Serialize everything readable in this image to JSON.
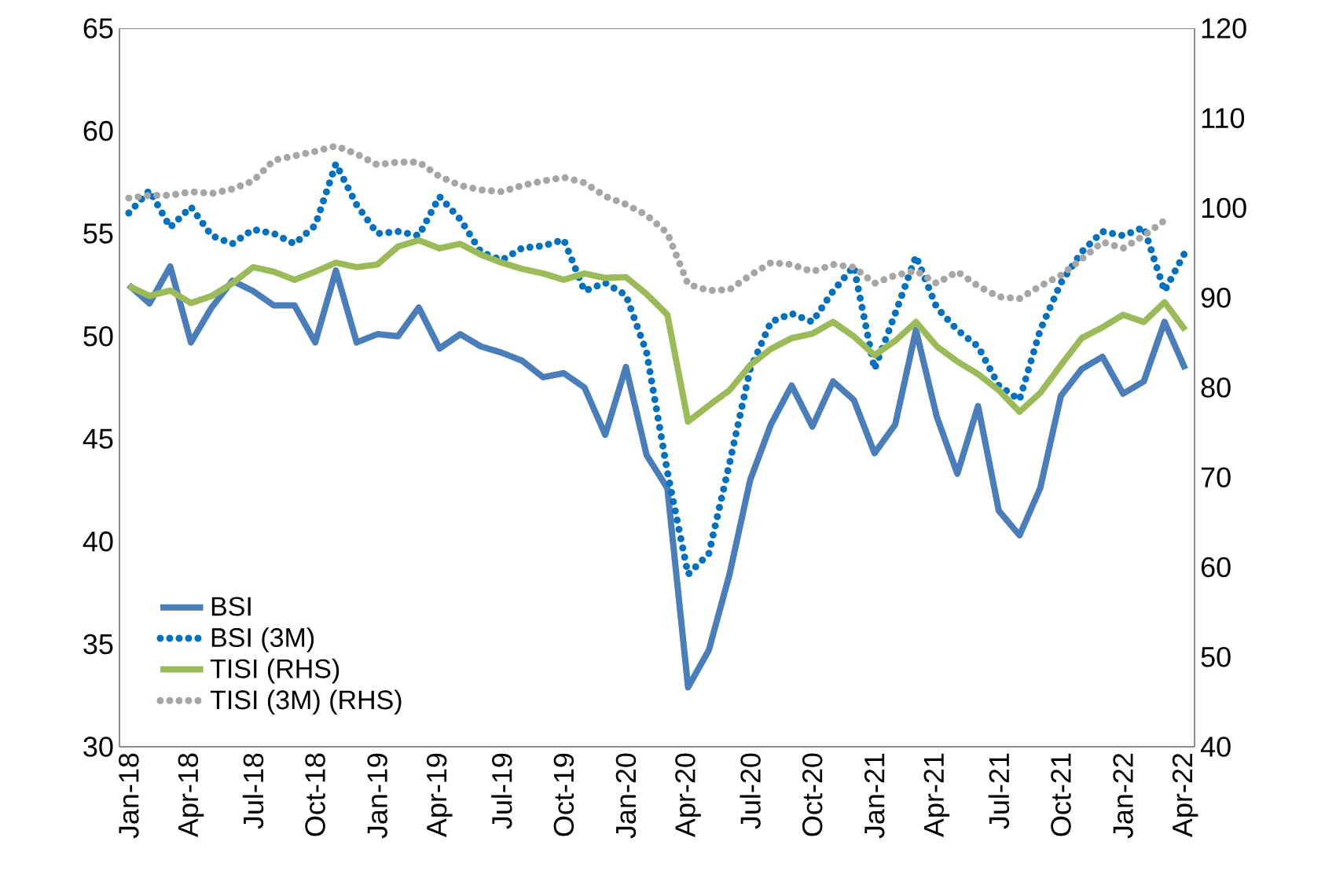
{
  "chart_data": {
    "type": "line",
    "categories": [
      "Jan-18",
      null,
      null,
      "Apr-18",
      null,
      null,
      "Jul-18",
      null,
      null,
      "Oct-18",
      null,
      null,
      "Jan-19",
      null,
      null,
      "Apr-19",
      null,
      null,
      "Jul-19",
      null,
      null,
      "Oct-19",
      null,
      null,
      "Jan-20",
      null,
      null,
      "Apr-20",
      null,
      null,
      "Jul-20",
      null,
      null,
      "Oct-20",
      null,
      null,
      "Jan-21",
      null,
      null,
      "Apr-21",
      null,
      null,
      "Jul-21",
      null,
      null,
      "Oct-21",
      null,
      null,
      "Jan-22",
      null,
      null,
      "Apr-22"
    ],
    "series": [
      {
        "name": "BSI",
        "color": "#4a7ebb",
        "line_style": "solid",
        "values": [
          52.5,
          51.6,
          53.4,
          49.7,
          51.4,
          52.7,
          52.2,
          51.5,
          51.5,
          49.7,
          53.2,
          49.7,
          50.1,
          50.0,
          51.4,
          49.4,
          50.1,
          49.5,
          49.2,
          48.8,
          48.0,
          48.2,
          47.5,
          45.2,
          48.5,
          44.2,
          42.6,
          32.9,
          34.7,
          38.4,
          43.0,
          45.7,
          47.6,
          45.6,
          47.8,
          46.9,
          44.3,
          45.7,
          50.3,
          46.1,
          43.3,
          46.6,
          41.5,
          40.3,
          42.6,
          47.1,
          48.4,
          49.0,
          47.2,
          47.8,
          50.7,
          48.4
        ]
      },
      {
        "name": "BSI (3M)",
        "color": "#0070c0",
        "line_style": "dotted",
        "values": [
          56.0,
          57.1,
          55.3,
          56.3,
          54.9,
          54.5,
          55.2,
          55.0,
          54.5,
          55.4,
          58.4,
          56.4,
          55.0,
          55.1,
          54.9,
          56.8,
          55.7,
          54.1,
          53.7,
          54.3,
          54.4,
          54.7,
          52.2,
          52.6,
          52.0,
          49.2,
          43.4,
          38.4,
          39.4,
          43.8,
          48.4,
          50.7,
          51.1,
          50.7,
          52.2,
          53.4,
          48.4,
          51.1,
          53.9,
          51.4,
          50.3,
          49.5,
          47.6,
          46.9,
          50.3,
          52.6,
          54.1,
          55.1,
          54.9,
          55.3,
          52.2,
          54.1
        ]
      },
      {
        "name": "TISI (RHS)",
        "color": "#9bbb59",
        "line_style": "solid",
        "axis": "y2",
        "values": [
          91.3,
          90.2,
          90.8,
          89.4,
          90.2,
          91.6,
          93.4,
          92.9,
          92.0,
          92.9,
          93.9,
          93.4,
          93.7,
          95.7,
          96.4,
          95.5,
          96.0,
          94.8,
          93.9,
          93.2,
          92.7,
          92.0,
          92.7,
          92.2,
          92.3,
          90.4,
          88.1,
          76.2,
          78.0,
          79.7,
          82.5,
          84.3,
          85.5,
          86.0,
          87.3,
          85.7,
          83.6,
          85.2,
          87.3,
          84.6,
          82.9,
          81.5,
          79.7,
          77.3,
          79.4,
          82.5,
          85.5,
          86.7,
          88.1,
          87.3,
          89.5,
          86.4
        ]
      },
      {
        "name": "TISI (3M) (RHS)",
        "color": "#a6a6a6",
        "line_style": "dotted",
        "axis": "y2",
        "values": [
          101.1,
          101.4,
          101.4,
          101.8,
          101.6,
          102.1,
          103.0,
          105.3,
          105.8,
          106.3,
          106.9,
          106.0,
          104.8,
          105.1,
          105.1,
          103.5,
          102.5,
          102.0,
          101.8,
          102.5,
          103.0,
          103.4,
          102.8,
          101.3,
          100.4,
          99.2,
          97.2,
          91.5,
          90.8,
          90.9,
          92.5,
          93.9,
          93.7,
          92.9,
          93.7,
          93.4,
          91.6,
          92.5,
          93.0,
          91.6,
          92.9,
          91.3,
          90.1,
          89.9,
          91.3,
          92.5,
          94.3,
          96.2,
          95.5,
          96.9,
          98.6,
          null
        ]
      }
    ],
    "ylim": [
      30,
      65
    ],
    "yticks": [
      30,
      35,
      40,
      45,
      50,
      55,
      60,
      65
    ],
    "y2lim": [
      40,
      120
    ],
    "y2ticks": [
      40,
      50,
      60,
      70,
      80,
      90,
      100,
      110,
      120
    ],
    "legend": "bottom left",
    "grid": false,
    "marker": "none"
  }
}
